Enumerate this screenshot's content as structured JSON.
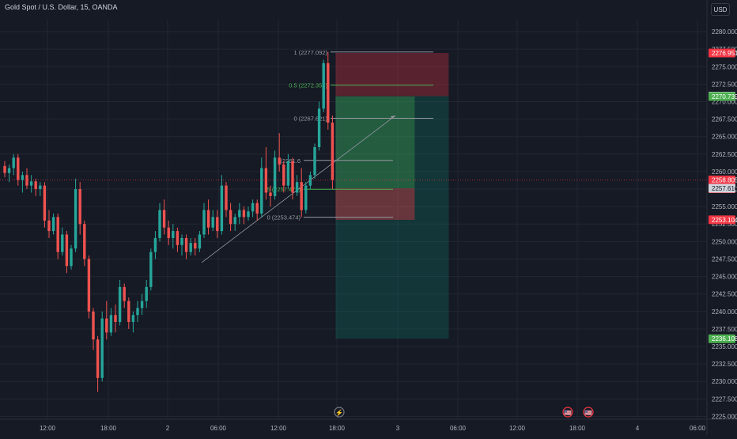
{
  "header": {
    "symbol_title": "Gold Spot / U.S. Dollar, 15, OANDA",
    "currency": "USD"
  },
  "colors": {
    "background": "#161a25",
    "grid": "#222632",
    "up": "#26a69a",
    "down": "#ef5350",
    "text": "#b2b5be",
    "fib": "#9598a1",
    "fib_mid": "#4caf50"
  },
  "chart_data": {
    "type": "candlestick",
    "title": "Gold Spot / U.S. Dollar, 15, OANDA",
    "ylim": [
      2224.6,
      2281.7
    ],
    "y_ticks": [
      2225.0,
      2227.5,
      2230.0,
      2232.5,
      2235.0,
      2237.5,
      2240.0,
      2242.5,
      2245.0,
      2247.5,
      2250.0,
      2252.5,
      2255.0,
      2257.5,
      2260.0,
      2262.5,
      2265.0,
      2267.5,
      2270.0,
      2272.5,
      2275.0,
      2277.5,
      2280.0
    ],
    "y_tick_labels": [
      "2225.000",
      "2227.500",
      "2230.000",
      "2232.500",
      "2235.000",
      "2237.500",
      "2240.000",
      "2242.500",
      "2245.000",
      "2247.500",
      "2250.000",
      "2252.500",
      "2255.000",
      "2257.500",
      "2260.000",
      "2262.500",
      "2265.000",
      "2267.500",
      "2270.000",
      "2272.500",
      "2275.000",
      "2277.500",
      "2280.000"
    ],
    "x_tick_labels": [
      "12:00",
      "18:00",
      "2",
      "06:00",
      "12:00",
      "18:00",
      "3",
      "06:00",
      "12:00",
      "18:00",
      "4",
      "06:00"
    ],
    "price_labels": [
      {
        "value": 2276.951,
        "label": "2276.951",
        "color": "#f23645"
      },
      {
        "value": 2270.789,
        "label": "2270.789",
        "color": "#b2b5be"
      },
      {
        "value": 2270.739,
        "label": "2270.739",
        "color": "#4caf50"
      },
      {
        "value": 2258.805,
        "label": "2258.805",
        "sub": "04:35",
        "color": "#f23645"
      },
      {
        "value": 2257.61,
        "label": "2257.610",
        "color": "#b2b5be"
      },
      {
        "value": 2253.104,
        "label": "2253.104",
        "color": "#f23645"
      },
      {
        "value": 2236.108,
        "label": "2236.108",
        "color": "#4caf50"
      }
    ],
    "last_price": 2258.805,
    "fib_levels_upper": [
      {
        "ratio_label": "1 (2277.092)",
        "value": 2277.092
      },
      {
        "ratio_label": "0.5 (2272.356)",
        "value": 2272.356
      },
      {
        "ratio_label": "0 (2267.621)",
        "value": 2267.621
      }
    ],
    "fib_levels_lower": [
      {
        "ratio_label": "(2261.6",
        "value": 2261.6
      },
      {
        "ratio_label": ".5 (2257.479)",
        "value": 2257.479
      },
      {
        "ratio_label": "0 (2253.474)",
        "value": 2253.474
      }
    ],
    "short_position": {
      "entry": 2270.789,
      "stop": 2276.951,
      "target": 2236.108
    },
    "long_position": {
      "entry": 2257.61,
      "stop": 2253.104,
      "target": 2270.739
    },
    "trendline": {
      "from": 2247.0,
      "to": 2268.0
    },
    "candles": [
      [
        2260.8,
        2261.5,
        2259.2,
        2259.8
      ],
      [
        2259.8,
        2261.0,
        2258.5,
        2260.5
      ],
      [
        2260.5,
        2262.5,
        2259.5,
        2262.0
      ],
      [
        2262.0,
        2262.5,
        2258.0,
        2258.8
      ],
      [
        2258.8,
        2260.0,
        2257.0,
        2259.5
      ],
      [
        2259.5,
        2260.5,
        2257.5,
        2258.0
      ],
      [
        2258.0,
        2259.5,
        2257.0,
        2258.6
      ],
      [
        2258.6,
        2259.0,
        2256.5,
        2257.5
      ],
      [
        2257.5,
        2258.5,
        2256.5,
        2258.0
      ],
      [
        2258.0,
        2258.5,
        2252.0,
        2253.0
      ],
      [
        2253.0,
        2254.5,
        2250.5,
        2251.5
      ],
      [
        2251.5,
        2254.0,
        2251.0,
        2253.5
      ],
      [
        2253.5,
        2254.0,
        2247.5,
        2248.5
      ],
      [
        2248.5,
        2252.0,
        2248.0,
        2251.0
      ],
      [
        2251.0,
        2251.5,
        2245.5,
        2246.5
      ],
      [
        2246.5,
        2249.5,
        2246.0,
        2249.0
      ],
      [
        2249.0,
        2259.0,
        2248.5,
        2257.5
      ],
      [
        2257.5,
        2258.5,
        2251.0,
        2252.5
      ],
      [
        2252.5,
        2253.0,
        2246.5,
        2247.5
      ],
      [
        2247.5,
        2248.0,
        2239.0,
        2240.0
      ],
      [
        2240.0,
        2240.5,
        2234.5,
        2236.0
      ],
      [
        2236.0,
        2236.5,
        2228.5,
        2230.5
      ],
      [
        2230.5,
        2240.0,
        2230.0,
        2239.0
      ],
      [
        2239.0,
        2241.5,
        2236.0,
        2237.0
      ],
      [
        2237.0,
        2240.5,
        2236.5,
        2239.5
      ],
      [
        2239.5,
        2241.0,
        2237.0,
        2238.5
      ],
      [
        2238.5,
        2244.5,
        2238.0,
        2243.5
      ],
      [
        2243.5,
        2244.0,
        2240.5,
        2241.5
      ],
      [
        2241.5,
        2242.0,
        2237.5,
        2238.5
      ],
      [
        2238.5,
        2240.0,
        2237.0,
        2239.5
      ],
      [
        2239.5,
        2241.5,
        2238.5,
        2240.5
      ],
      [
        2240.5,
        2242.5,
        2239.5,
        2241.5
      ],
      [
        2241.5,
        2244.5,
        2240.5,
        2243.5
      ],
      [
        2243.5,
        2249.0,
        2243.0,
        2248.5
      ],
      [
        2248.5,
        2251.5,
        2247.5,
        2250.5
      ],
      [
        2250.5,
        2255.5,
        2250.0,
        2254.5
      ],
      [
        2254.5,
        2256.0,
        2251.0,
        2252.0
      ],
      [
        2252.0,
        2253.0,
        2249.5,
        2250.5
      ],
      [
        2250.5,
        2252.5,
        2249.0,
        2251.5
      ],
      [
        2251.5,
        2252.0,
        2248.5,
        2249.5
      ],
      [
        2249.5,
        2251.0,
        2248.0,
        2250.5
      ],
      [
        2250.5,
        2251.0,
        2247.5,
        2248.5
      ],
      [
        2248.5,
        2250.5,
        2248.0,
        2249.8
      ],
      [
        2249.8,
        2250.5,
        2248.0,
        2249.0
      ],
      [
        2249.0,
        2251.5,
        2248.5,
        2251.0
      ],
      [
        2251.0,
        2255.5,
        2250.5,
        2254.5
      ],
      [
        2254.5,
        2256.0,
        2251.0,
        2252.0
      ],
      [
        2252.0,
        2254.5,
        2251.5,
        2253.5
      ],
      [
        2253.5,
        2254.5,
        2250.5,
        2251.5
      ],
      [
        2251.5,
        2259.5,
        2251.0,
        2258.0
      ],
      [
        2258.0,
        2258.5,
        2253.5,
        2254.5
      ],
      [
        2254.5,
        2255.5,
        2251.5,
        2252.5
      ],
      [
        2252.5,
        2254.0,
        2251.5,
        2253.5
      ],
      [
        2253.5,
        2255.5,
        2252.5,
        2254.5
      ],
      [
        2254.5,
        2255.0,
        2252.5,
        2253.5
      ],
      [
        2253.5,
        2255.0,
        2253.0,
        2254.3
      ],
      [
        2254.3,
        2256.0,
        2253.5,
        2255.5
      ],
      [
        2255.5,
        2256.0,
        2253.0,
        2254.0
      ],
      [
        2254.0,
        2262.0,
        2253.5,
        2260.5
      ],
      [
        2260.5,
        2263.5,
        2256.0,
        2257.0
      ],
      [
        2257.0,
        2258.0,
        2255.0,
        2256.5
      ],
      [
        2256.5,
        2263.0,
        2256.0,
        2262.0
      ],
      [
        2262.0,
        2265.5,
        2260.0,
        2261.0
      ],
      [
        2261.0,
        2261.5,
        2257.0,
        2258.0
      ],
      [
        2258.0,
        2262.5,
        2257.5,
        2261.5
      ],
      [
        2261.5,
        2262.0,
        2256.0,
        2257.0
      ],
      [
        2257.0,
        2259.5,
        2256.5,
        2258.5
      ],
      [
        2258.5,
        2260.5,
        2253.5,
        2254.5
      ],
      [
        2254.5,
        2258.5,
        2254.0,
        2258.0
      ],
      [
        2258.0,
        2260.0,
        2257.5,
        2259.5
      ],
      [
        2259.5,
        2264.0,
        2259.0,
        2263.5
      ],
      [
        2263.5,
        2270.0,
        2263.0,
        2269.0
      ],
      [
        2269.0,
        2276.0,
        2268.5,
        2275.5
      ],
      [
        2275.5,
        2277.1,
        2266.0,
        2267.0
      ],
      [
        2267.0,
        2268.0,
        2257.5,
        2258.8
      ]
    ]
  },
  "markers": [
    {
      "label": "⚡"
    },
    {
      "label": "🇺🇸"
    },
    {
      "label": "🇺🇸"
    }
  ]
}
